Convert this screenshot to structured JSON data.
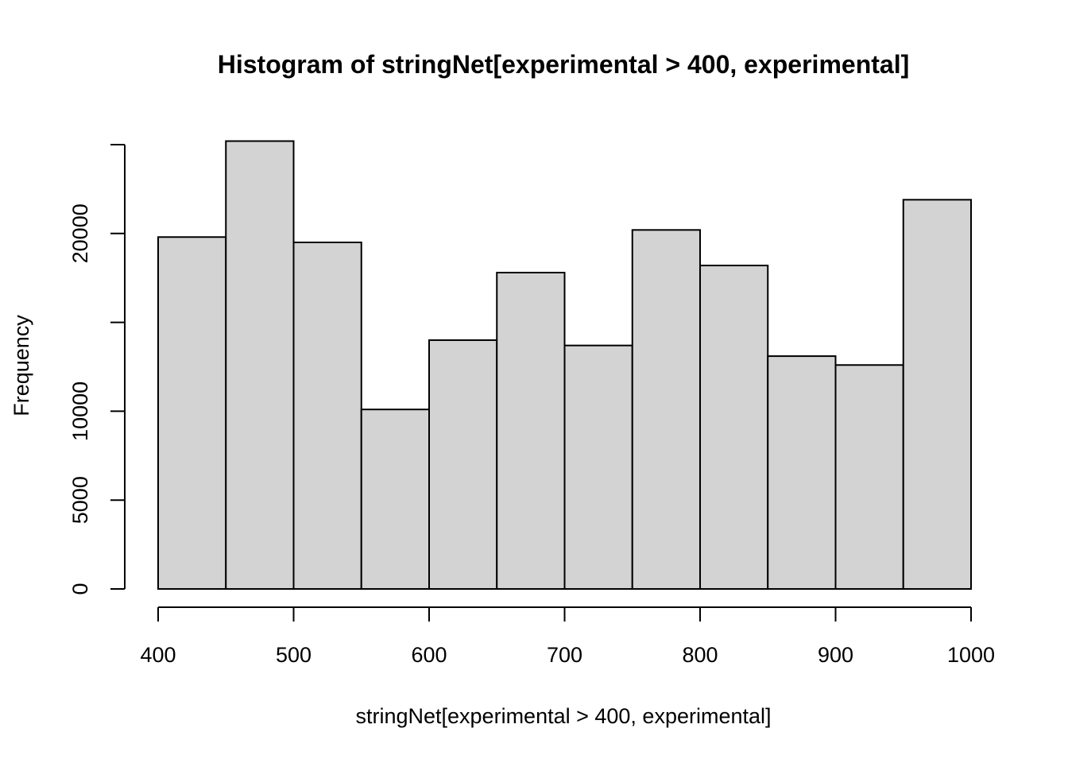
{
  "chart_data": {
    "type": "bar",
    "title": "Histogram of stringNet[experimental > 400, experimental]",
    "xlabel": "stringNet[experimental > 400, experimental]",
    "ylabel": "Frequency",
    "bin_edges": [
      400,
      450,
      500,
      550,
      600,
      650,
      700,
      750,
      800,
      850,
      900,
      950,
      1000
    ],
    "values": [
      19800,
      25200,
      19500,
      10100,
      14000,
      17800,
      13700,
      20200,
      18200,
      13100,
      12600,
      21900
    ],
    "xlim": [
      400,
      1000
    ],
    "ylim": [
      0,
      25000
    ],
    "x_ticks": [
      400,
      500,
      600,
      700,
      800,
      900,
      1000
    ],
    "y_ticks": [
      0,
      5000,
      10000,
      15000,
      20000,
      25000
    ],
    "y_tick_labels": [
      "0",
      "5000",
      "10000",
      "",
      "20000",
      ""
    ],
    "grid": false,
    "colors": {
      "bar_fill": "#d3d3d3",
      "bar_stroke": "#000000"
    }
  }
}
